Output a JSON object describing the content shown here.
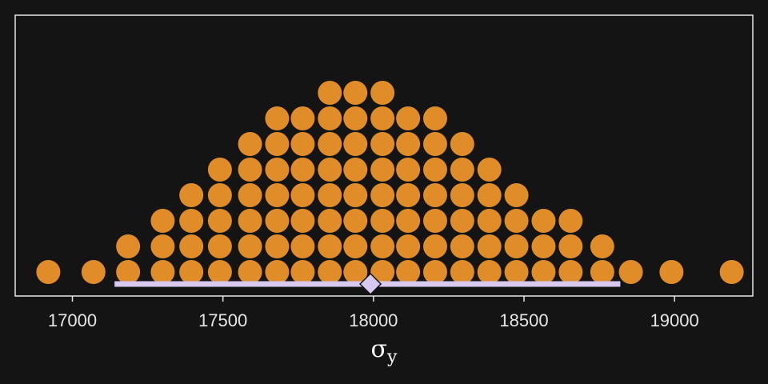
{
  "chart_data": {
    "type": "dotplot",
    "xlabel": "σ",
    "xlabel_subscript": "y",
    "x_ticks": [
      17000,
      17500,
      18000,
      18500,
      19000
    ],
    "x_tick_labels": [
      "17000",
      "17500",
      "18000",
      "18500",
      "19000"
    ],
    "xlim": [
      16810,
      19260
    ],
    "grid": false,
    "legend": "none",
    "columns": [
      {
        "x": 16920,
        "count": 1
      },
      {
        "x": 17070,
        "count": 1
      },
      {
        "x": 17185,
        "count": 2
      },
      {
        "x": 17300,
        "count": 3
      },
      {
        "x": 17395,
        "count": 4
      },
      {
        "x": 17490,
        "count": 5
      },
      {
        "x": 17590,
        "count": 6
      },
      {
        "x": 17680,
        "count": 7
      },
      {
        "x": 17765,
        "count": 7
      },
      {
        "x": 17855,
        "count": 8
      },
      {
        "x": 17940,
        "count": 8
      },
      {
        "x": 18030,
        "count": 8
      },
      {
        "x": 18115,
        "count": 7
      },
      {
        "x": 18205,
        "count": 7
      },
      {
        "x": 18295,
        "count": 6
      },
      {
        "x": 18385,
        "count": 5
      },
      {
        "x": 18475,
        "count": 4
      },
      {
        "x": 18565,
        "count": 3
      },
      {
        "x": 18655,
        "count": 3
      },
      {
        "x": 18760,
        "count": 2
      },
      {
        "x": 18855,
        "count": 1
      },
      {
        "x": 18990,
        "count": 1
      },
      {
        "x": 19190,
        "count": 1
      }
    ],
    "interval": {
      "low": 17140,
      "high": 18820
    },
    "point_estimate": 17990,
    "colors": {
      "background": "#141414",
      "dots": "#e08c28",
      "interval": "#d7c8f0",
      "panel_border": "#e6e6e6",
      "text": "#e6e6e6"
    }
  }
}
